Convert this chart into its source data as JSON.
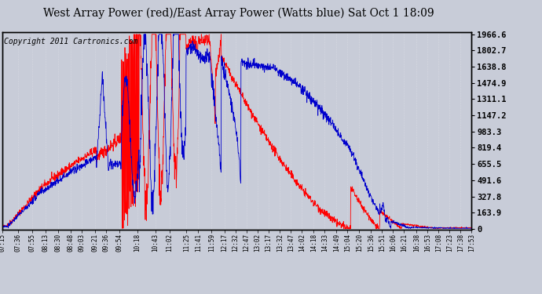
{
  "title": "West Array Power (red)/East Array Power (Watts blue) Sat Oct 1 18:09",
  "copyright": "Copyright 2011 Cartronics.com",
  "yticks": [
    0.0,
    163.9,
    327.8,
    491.6,
    655.5,
    819.4,
    983.3,
    1147.2,
    1311.1,
    1474.9,
    1638.8,
    1802.7,
    1966.6
  ],
  "xtick_labels": [
    "07:15",
    "07:36",
    "07:55",
    "08:13",
    "08:30",
    "08:48",
    "09:03",
    "09:21",
    "09:36",
    "09:54",
    "10:18",
    "10:43",
    "11:02",
    "11:25",
    "11:41",
    "11:59",
    "12:17",
    "12:32",
    "12:47",
    "13:02",
    "13:17",
    "13:32",
    "13:47",
    "14:02",
    "14:18",
    "14:33",
    "14:49",
    "15:04",
    "15:20",
    "15:36",
    "15:51",
    "16:06",
    "16:21",
    "16:38",
    "16:53",
    "17:08",
    "17:23",
    "17:38",
    "17:53"
  ],
  "ymax": 1966.6,
  "ymin": 0.0,
  "bg_color": "#c8ccd8",
  "plot_bg_color": "#c8ccd8",
  "line_color_red": "#ff0000",
  "line_color_blue": "#0000cc",
  "title_fontsize": 10,
  "copyright_fontsize": 7,
  "t_start_hm": "07:15",
  "t_end_hm": "17:53"
}
